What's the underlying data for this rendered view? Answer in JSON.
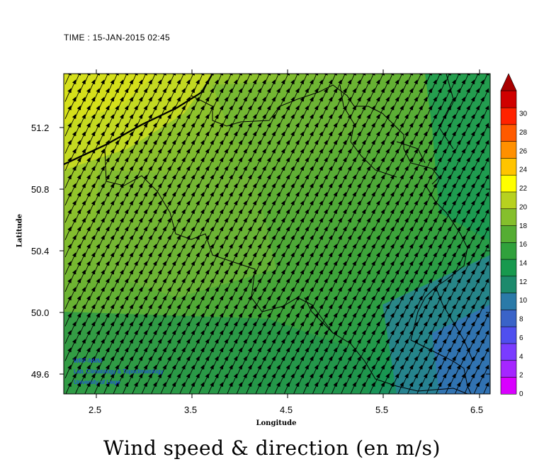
{
  "header": {
    "time_label": "TIME : 15-JAN-2015 02:45"
  },
  "footer": {
    "title": "Wind speed & direction (en m/s)"
  },
  "credits": [
    "WRF-NMM",
    "Lab. Climatology & Topoclimatology",
    "University of Liege"
  ],
  "chart_data": {
    "type": "heatmap",
    "title": "Wind speed & direction (en m/s)",
    "xlabel": "Longitude",
    "ylabel": "Latitude",
    "xlim": [
      2.2,
      6.55
    ],
    "ylim": [
      49.47,
      51.55
    ],
    "x_ticks": [
      "2.5",
      "3.5",
      "4.5",
      "5.5",
      "6.5"
    ],
    "y_ticks": [
      "49.6",
      "50.0",
      "50.4",
      "50.8",
      "51.2"
    ],
    "colorbar": {
      "min": 0,
      "max": 30,
      "step": 2,
      "labels": [
        "0",
        "2",
        "4",
        "6",
        "8",
        "10",
        "12",
        "14",
        "16",
        "18",
        "20",
        "22",
        "24",
        "26",
        "28",
        "30"
      ],
      "colors": [
        "#d900ff",
        "#a526ff",
        "#7a3cff",
        "#4f4fef",
        "#3a63c8",
        "#2a7aa8",
        "#1c8a6c",
        "#17994e",
        "#30a13c",
        "#55ad33",
        "#85bf2c",
        "#b7d11f",
        "#ffff00",
        "#ffc400",
        "#ff9000",
        "#ff5a00",
        "#ff2200",
        "#d00000"
      ]
    },
    "wind_direction": "from south-west",
    "speed_range": [
      9,
      19
    ]
  }
}
